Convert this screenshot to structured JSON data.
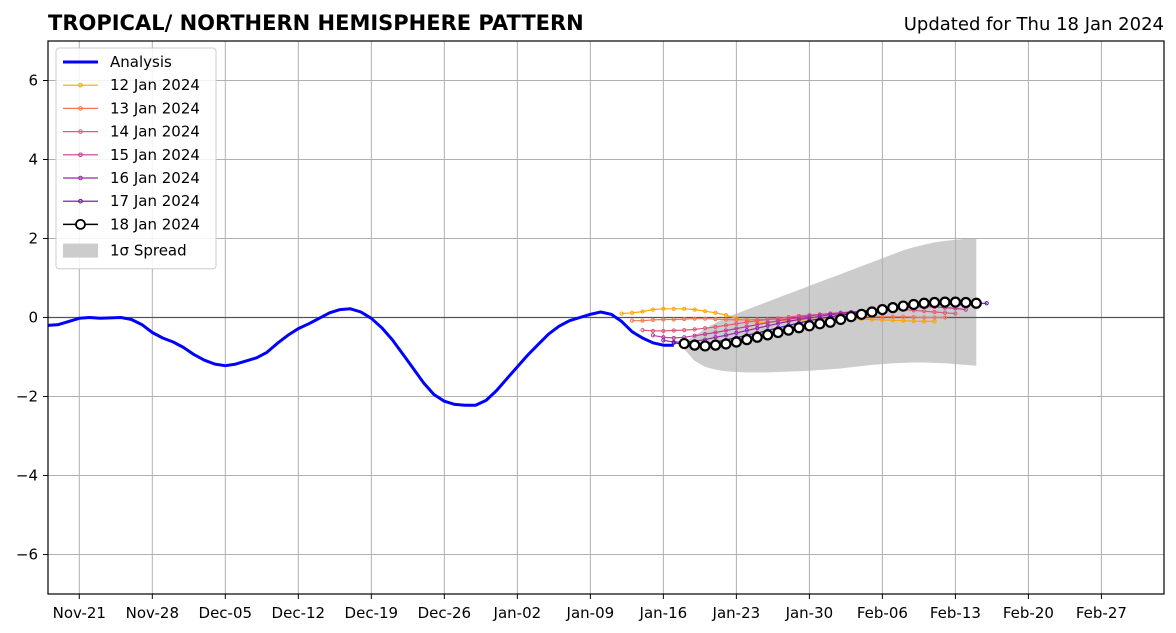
{
  "chart_data": {
    "type": "line",
    "title": "TROPICAL/ NORTHERN HEMISPHERE PATTERN",
    "subtitle": "Updated for Thu 18 Jan 2024",
    "xlabel": "",
    "ylabel": "",
    "x_range": [
      "2023-11-18",
      "2024-03-04"
    ],
    "ylim": [
      -7,
      7
    ],
    "grid": true,
    "legend_position": "upper-left",
    "x_ticks": [
      {
        "date": "2023-11-21",
        "label": "Nov-21"
      },
      {
        "date": "2023-11-28",
        "label": "Nov-28"
      },
      {
        "date": "2023-12-05",
        "label": "Dec-05"
      },
      {
        "date": "2023-12-12",
        "label": "Dec-12"
      },
      {
        "date": "2023-12-19",
        "label": "Dec-19"
      },
      {
        "date": "2023-12-26",
        "label": "Dec-26"
      },
      {
        "date": "2024-01-02",
        "label": "Jan-02"
      },
      {
        "date": "2024-01-09",
        "label": "Jan-09"
      },
      {
        "date": "2024-01-16",
        "label": "Jan-16"
      },
      {
        "date": "2024-01-23",
        "label": "Jan-23"
      },
      {
        "date": "2024-01-30",
        "label": "Jan-30"
      },
      {
        "date": "2024-02-06",
        "label": "Feb-06"
      },
      {
        "date": "2024-02-13",
        "label": "Feb-13"
      },
      {
        "date": "2024-02-20",
        "label": "Feb-20"
      },
      {
        "date": "2024-02-27",
        "label": "Feb-27"
      }
    ],
    "y_ticks": [
      {
        "value": 6,
        "label": "6"
      },
      {
        "value": 4,
        "label": "4"
      },
      {
        "value": 2,
        "label": "2"
      },
      {
        "value": 0,
        "label": "0"
      },
      {
        "value": -2,
        "label": "−2"
      },
      {
        "value": -4,
        "label": "−4"
      },
      {
        "value": -6,
        "label": "−6"
      }
    ],
    "analysis": {
      "name": "Analysis",
      "color": "#0000ff",
      "start_date": "2023-11-18",
      "values": [
        -0.2,
        -0.18,
        -0.1,
        -0.02,
        0,
        -0.02,
        -0.01,
        0,
        -0.05,
        -0.18,
        -0.38,
        -0.52,
        -0.62,
        -0.76,
        -0.94,
        -1.08,
        -1.18,
        -1.22,
        -1.18,
        -1.1,
        -1.02,
        -0.88,
        -0.65,
        -0.45,
        -0.28,
        -0.16,
        -0.02,
        0.12,
        0.2,
        0.22,
        0.14,
        -0.02,
        -0.26,
        -0.56,
        -0.92,
        -1.28,
        -1.65,
        -1.95,
        -2.12,
        -2.2,
        -2.22,
        -2.22,
        -2.1,
        -1.85,
        -1.55,
        -1.25,
        -0.95,
        -0.68,
        -0.42,
        -0.22,
        -0.08,
        0.0,
        0.08,
        0.14,
        0.08,
        -0.1,
        -0.36,
        -0.52,
        -0.64,
        -0.7,
        -0.7
      ]
    },
    "forecasts": [
      {
        "name": "12 Jan 2024",
        "color": "#ffa500",
        "start_date": "2024-01-12",
        "values": [
          0.1,
          0.12,
          0.15,
          0.2,
          0.22,
          0.22,
          0.22,
          0.2,
          0.16,
          0.12,
          0.06,
          -0.02,
          -0.08,
          -0.12,
          -0.12,
          -0.1,
          -0.08,
          -0.06,
          -0.06,
          -0.06,
          -0.05,
          -0.04,
          -0.04,
          -0.04,
          -0.05,
          -0.06,
          -0.07,
          -0.08,
          -0.09,
          -0.1,
          -0.1
        ]
      },
      {
        "name": "13 Jan 2024",
        "color": "#f07850",
        "start_date": "2024-01-13",
        "values": [
          -0.08,
          -0.08,
          -0.06,
          -0.05,
          -0.05,
          -0.04,
          -0.03,
          -0.03,
          -0.04,
          -0.05,
          -0.06,
          -0.06,
          -0.05,
          -0.05,
          -0.04,
          -0.03,
          -0.02,
          -0.01,
          0.0,
          0.0,
          0.01,
          0.02,
          0.02,
          0.02,
          0.02,
          0.02,
          0.02,
          0.01,
          0.0,
          0.0,
          0.0
        ]
      },
      {
        "name": "14 Jan 2024",
        "color": "#e05a78",
        "start_date": "2024-01-14",
        "values": [
          -0.32,
          -0.34,
          -0.34,
          -0.33,
          -0.32,
          -0.3,
          -0.27,
          -0.24,
          -0.2,
          -0.16,
          -0.12,
          -0.08,
          -0.05,
          -0.02,
          0.01,
          0.04,
          0.06,
          0.08,
          0.1,
          0.12,
          0.14,
          0.16,
          0.18,
          0.2,
          0.2,
          0.2,
          0.18,
          0.16,
          0.14,
          0.12,
          0.1
        ]
      },
      {
        "name": "15 Jan 2024",
        "color": "#c03c96",
        "start_date": "2024-01-15",
        "values": [
          -0.45,
          -0.5,
          -0.52,
          -0.5,
          -0.46,
          -0.42,
          -0.38,
          -0.33,
          -0.28,
          -0.23,
          -0.18,
          -0.13,
          -0.08,
          -0.04,
          0.0,
          0.04,
          0.07,
          0.1,
          0.12,
          0.14,
          0.16,
          0.18,
          0.2,
          0.22,
          0.24,
          0.26,
          0.27,
          0.27,
          0.25,
          0.23,
          0.2
        ]
      },
      {
        "name": "16 Jan 2024",
        "color": "#9628a8",
        "start_date": "2024-01-16",
        "values": [
          -0.58,
          -0.62,
          -0.62,
          -0.6,
          -0.56,
          -0.5,
          -0.45,
          -0.39,
          -0.33,
          -0.27,
          -0.21,
          -0.15,
          -0.1,
          -0.05,
          -0.01,
          0.03,
          0.07,
          0.1,
          0.13,
          0.16,
          0.19,
          0.22,
          0.25,
          0.27,
          0.29,
          0.31,
          0.32,
          0.33,
          0.33,
          0.32,
          0.32
        ]
      },
      {
        "name": "17 Jan 2024",
        "color": "#5a14a0",
        "start_date": "2024-01-17",
        "values": [
          -0.64,
          -0.68,
          -0.68,
          -0.66,
          -0.62,
          -0.57,
          -0.51,
          -0.45,
          -0.39,
          -0.33,
          -0.26,
          -0.2,
          -0.14,
          -0.08,
          -0.03,
          0.02,
          0.06,
          0.1,
          0.14,
          0.18,
          0.21,
          0.24,
          0.27,
          0.3,
          0.33,
          0.35,
          0.36,
          0.37,
          0.37,
          0.36,
          0.36
        ]
      }
    ],
    "current_forecast": {
      "name": "18 Jan 2024",
      "color": "#000000",
      "marker_fill": "#ffffff",
      "start_date": "2024-01-18",
      "values": [
        -0.66,
        -0.7,
        -0.72,
        -0.7,
        -0.67,
        -0.62,
        -0.56,
        -0.5,
        -0.44,
        -0.38,
        -0.32,
        -0.26,
        -0.21,
        -0.16,
        -0.12,
        -0.05,
        0.02,
        0.08,
        0.14,
        0.2,
        0.25,
        0.29,
        0.33,
        0.36,
        0.38,
        0.39,
        0.39,
        0.38,
        0.36
      ]
    },
    "spread": {
      "name": "1σ Spread",
      "color": "#cccccc",
      "start_date": "2024-01-18",
      "upper": [
        -0.62,
        -0.46,
        -0.28,
        -0.14,
        0.0,
        0.1,
        0.2,
        0.3,
        0.4,
        0.5,
        0.6,
        0.7,
        0.8,
        0.9,
        1.0,
        1.1,
        1.2,
        1.3,
        1.4,
        1.5,
        1.6,
        1.7,
        1.78,
        1.84,
        1.9,
        1.94,
        1.97,
        1.99,
        2.0
      ],
      "lower": [
        -0.8,
        -1.1,
        -1.25,
        -1.32,
        -1.36,
        -1.38,
        -1.39,
        -1.39,
        -1.39,
        -1.38,
        -1.37,
        -1.36,
        -1.35,
        -1.33,
        -1.31,
        -1.29,
        -1.26,
        -1.23,
        -1.2,
        -1.18,
        -1.16,
        -1.15,
        -1.14,
        -1.14,
        -1.15,
        -1.16,
        -1.18,
        -1.2,
        -1.22
      ]
    },
    "zero_line": {
      "value": 0,
      "color": "#555555"
    }
  }
}
